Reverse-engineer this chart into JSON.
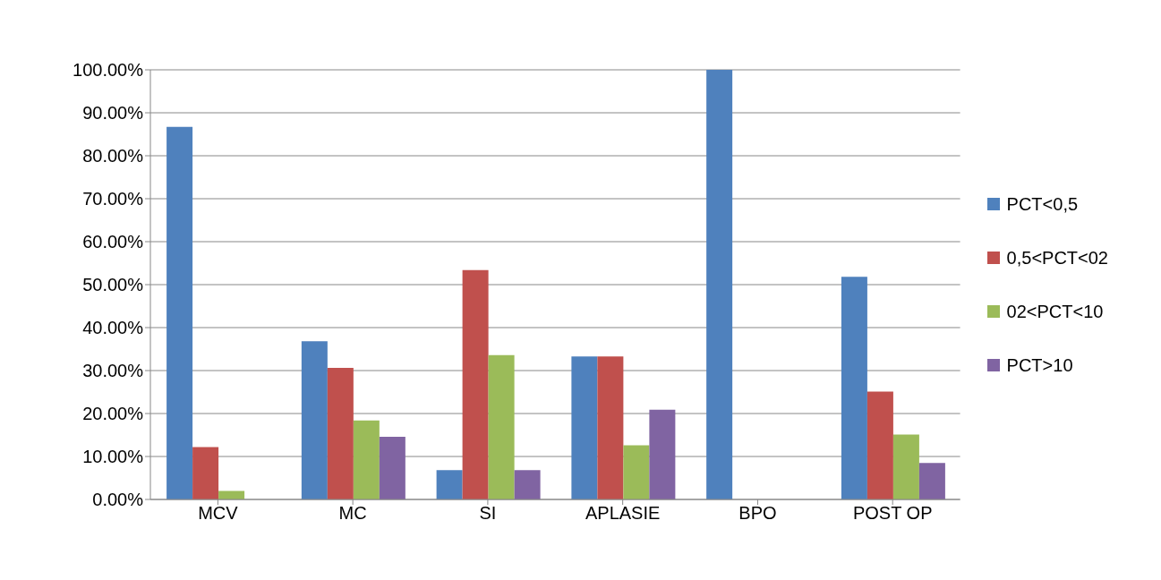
{
  "chart_data": {
    "type": "bar",
    "categories": [
      "MCV",
      "MC",
      "SI",
      "APLASIE",
      "BPO",
      "POST OP"
    ],
    "series": [
      {
        "name": "PCT<0,5",
        "color": "#4f81bd",
        "values": [
          86.7,
          36.8,
          6.8,
          33.3,
          100,
          51.8
        ]
      },
      {
        "name": "0,5<PCT<02",
        "color": "#c0504d",
        "values": [
          12.2,
          30.6,
          53.4,
          33.3,
          0,
          25.1
        ]
      },
      {
        "name": "02<PCT<10",
        "color": "#9bbb59",
        "values": [
          2,
          18.4,
          33.6,
          12.6,
          0,
          15.1
        ]
      },
      {
        "name": "PCT>10",
        "color": "#8064a2",
        "values": [
          0,
          14.6,
          6.8,
          20.9,
          0,
          8.5
        ]
      }
    ],
    "ylim": [
      0,
      100
    ],
    "yticks": [
      {
        "value": 0,
        "label": "0.00%"
      },
      {
        "value": 10,
        "label": "10.00%"
      },
      {
        "value": 20,
        "label": "20.00%"
      },
      {
        "value": 30,
        "label": "30.00%"
      },
      {
        "value": 40,
        "label": "40.00%"
      },
      {
        "value": 50,
        "label": "50.00%"
      },
      {
        "value": 60,
        "label": "60.00%"
      },
      {
        "value": 70,
        "label": "70.00%"
      },
      {
        "value": 80,
        "label": "80.00%"
      },
      {
        "value": 90,
        "label": "90.00%"
      },
      {
        "value": 100,
        "label": "100.00%"
      }
    ],
    "grid": "y",
    "legend": "right"
  }
}
